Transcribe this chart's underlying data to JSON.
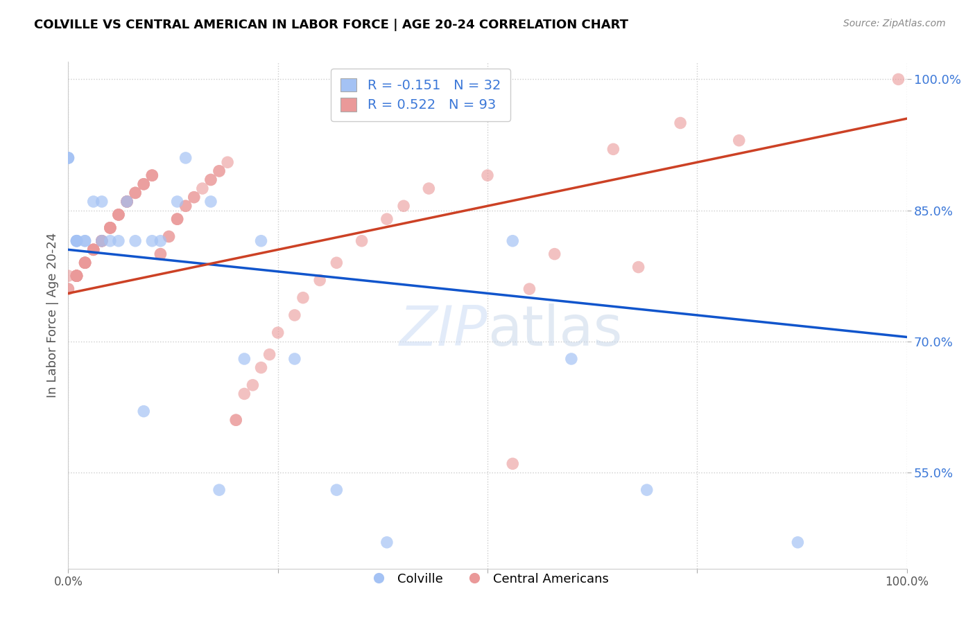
{
  "title": "COLVILLE VS CENTRAL AMERICAN IN LABOR FORCE | AGE 20-24 CORRELATION CHART",
  "source": "Source: ZipAtlas.com",
  "ylabel": "In Labor Force | Age 20-24",
  "xlim": [
    0.0,
    1.0
  ],
  "ylim": [
    0.44,
    1.02
  ],
  "yticks": [
    0.55,
    0.7,
    0.85,
    1.0
  ],
  "ytick_labels": [
    "55.0%",
    "70.0%",
    "85.0%",
    "100.0%"
  ],
  "colville_R": -0.151,
  "colville_N": 32,
  "central_R": 0.522,
  "central_N": 93,
  "colville_color": "#a4c2f4",
  "central_color": "#ea9999",
  "colville_line_color": "#1155cc",
  "central_line_color": "#cc4125",
  "background_color": "#ffffff",
  "colville_x": [
    0.0,
    0.0,
    0.0,
    0.01,
    0.01,
    0.01,
    0.01,
    0.02,
    0.02,
    0.03,
    0.04,
    0.04,
    0.05,
    0.06,
    0.07,
    0.08,
    0.09,
    0.1,
    0.11,
    0.13,
    0.14,
    0.17,
    0.18,
    0.21,
    0.23,
    0.27,
    0.32,
    0.38,
    0.53,
    0.6,
    0.69,
    0.87
  ],
  "colville_y": [
    0.91,
    0.91,
    0.91,
    0.815,
    0.815,
    0.815,
    0.815,
    0.815,
    0.815,
    0.86,
    0.86,
    0.815,
    0.815,
    0.815,
    0.86,
    0.815,
    0.62,
    0.815,
    0.815,
    0.86,
    0.91,
    0.86,
    0.53,
    0.68,
    0.815,
    0.68,
    0.53,
    0.47,
    0.815,
    0.68,
    0.53,
    0.47
  ],
  "central_x": [
    0.0,
    0.0,
    0.0,
    0.01,
    0.01,
    0.01,
    0.01,
    0.01,
    0.01,
    0.01,
    0.01,
    0.02,
    0.02,
    0.02,
    0.02,
    0.02,
    0.02,
    0.03,
    0.03,
    0.03,
    0.03,
    0.03,
    0.04,
    0.04,
    0.04,
    0.04,
    0.04,
    0.05,
    0.05,
    0.05,
    0.05,
    0.05,
    0.06,
    0.06,
    0.06,
    0.06,
    0.07,
    0.07,
    0.07,
    0.07,
    0.07,
    0.08,
    0.08,
    0.08,
    0.09,
    0.09,
    0.09,
    0.1,
    0.1,
    0.1,
    0.11,
    0.11,
    0.12,
    0.12,
    0.13,
    0.13,
    0.13,
    0.14,
    0.14,
    0.15,
    0.15,
    0.16,
    0.17,
    0.17,
    0.18,
    0.18,
    0.19,
    0.2,
    0.2,
    0.21,
    0.22,
    0.23,
    0.24,
    0.25,
    0.27,
    0.28,
    0.3,
    0.32,
    0.35,
    0.38,
    0.4,
    0.43,
    0.5,
    0.53,
    0.55,
    0.58,
    0.65,
    0.68,
    0.73,
    0.8,
    0.99
  ],
  "central_y": [
    0.775,
    0.76,
    0.76,
    0.775,
    0.775,
    0.775,
    0.775,
    0.775,
    0.775,
    0.775,
    0.775,
    0.79,
    0.79,
    0.79,
    0.79,
    0.79,
    0.79,
    0.805,
    0.805,
    0.805,
    0.805,
    0.805,
    0.815,
    0.815,
    0.815,
    0.815,
    0.815,
    0.83,
    0.83,
    0.83,
    0.83,
    0.83,
    0.845,
    0.845,
    0.845,
    0.845,
    0.86,
    0.86,
    0.86,
    0.86,
    0.86,
    0.87,
    0.87,
    0.87,
    0.88,
    0.88,
    0.88,
    0.89,
    0.89,
    0.89,
    0.8,
    0.8,
    0.82,
    0.82,
    0.84,
    0.84,
    0.84,
    0.855,
    0.855,
    0.865,
    0.865,
    0.875,
    0.885,
    0.885,
    0.895,
    0.895,
    0.905,
    0.61,
    0.61,
    0.64,
    0.65,
    0.67,
    0.685,
    0.71,
    0.73,
    0.75,
    0.77,
    0.79,
    0.815,
    0.84,
    0.855,
    0.875,
    0.89,
    0.56,
    0.76,
    0.8,
    0.92,
    0.785,
    0.95,
    0.93,
    1.0
  ]
}
